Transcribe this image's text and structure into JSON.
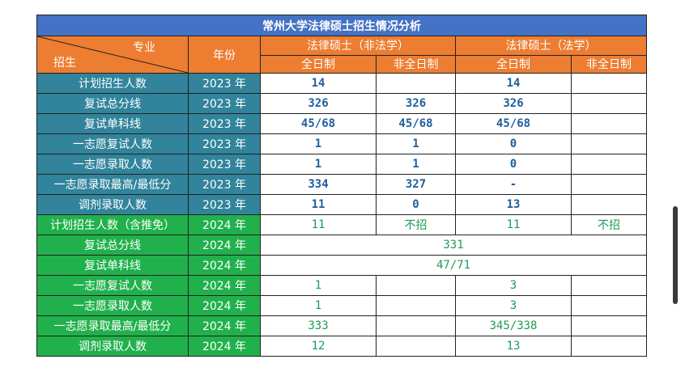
{
  "title": "常州大学法律硕士招生情况分析",
  "header": {
    "corner_top": "专业",
    "corner_bottom": "招生",
    "year_col": "年份",
    "group1": "法律硕士（非法学）",
    "group2": "法律硕士（法学）",
    "sub": [
      "全日制",
      "非全日制",
      "全日制",
      "非全日制"
    ]
  },
  "rows2023": [
    {
      "label": "计划招生人数",
      "year": "2023 年",
      "c1": "14",
      "c2": "",
      "c3": "14",
      "c4": ""
    },
    {
      "label": "复试总分线",
      "year": "2023 年",
      "c1": "326",
      "c2": "326",
      "c3": "326",
      "c4": ""
    },
    {
      "label": "复试单科线",
      "year": "2023 年",
      "c1": "45/68",
      "c2": "45/68",
      "c3": "45/68",
      "c4": ""
    },
    {
      "label": "一志愿复试人数",
      "year": "2023 年",
      "c1": "1",
      "c2": "1",
      "c3": "0",
      "c4": ""
    },
    {
      "label": "一志愿录取人数",
      "year": "2023 年",
      "c1": "1",
      "c2": "1",
      "c3": "0",
      "c4": ""
    },
    {
      "label": "一志愿录取最高/最低分",
      "year": "2023 年",
      "c1": "334",
      "c2": "327",
      "c3": "-",
      "c4": ""
    },
    {
      "label": "调剂录取人数",
      "year": "2023 年",
      "c1": "11",
      "c2": "0",
      "c3": "13",
      "c4": ""
    }
  ],
  "rows2024": {
    "plan": {
      "label": "计划招生人数（含推免）",
      "year": "2024 年",
      "c1": "11",
      "c2": "不招",
      "c3": "11",
      "c4": "不招"
    },
    "total_line": {
      "label": "复试总分线",
      "year": "2024 年",
      "value": "331"
    },
    "single_line": {
      "label": "复试单科线",
      "year": "2024 年",
      "value": "47/71"
    },
    "first_retest": {
      "label": "一志愿复试人数",
      "year": "2024 年",
      "c1": "1",
      "c2": "",
      "c3": "3",
      "c4": ""
    },
    "first_admit": {
      "label": "一志愿录取人数",
      "year": "2024 年",
      "c1": "1",
      "c2": "",
      "c3": "3",
      "c4": ""
    },
    "first_score": {
      "label": "一志愿录取最高/最低分",
      "year": "2024 年",
      "c1": "333",
      "c2": "",
      "c3": "345/338",
      "c4": ""
    },
    "adjust": {
      "label": "调剂录取人数",
      "year": "2024 年",
      "c1": "12",
      "c2": "",
      "c3": "13",
      "c4": ""
    }
  }
}
